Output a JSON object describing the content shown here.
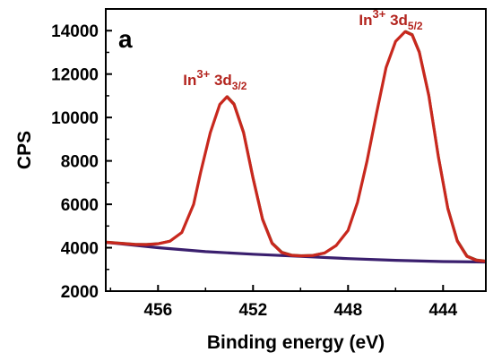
{
  "chart_data": {
    "type": "line",
    "panel_label": "a",
    "xlabel": "Binding energy (eV)",
    "ylabel": "CPS",
    "xlim": [
      458.2,
      442.2
    ],
    "ylim": [
      2000,
      15000
    ],
    "x_reversed": true,
    "x_ticks": [
      456,
      452,
      448,
      444
    ],
    "y_ticks": [
      2000,
      4000,
      6000,
      8000,
      10000,
      12000,
      14000
    ],
    "grid": false,
    "colors": {
      "fit": "#c8281e",
      "raw": "#7a4a20",
      "background": "#3a1f6e",
      "annotation": "#b3241e"
    },
    "annotations": [
      {
        "base": "In",
        "sup": "3+",
        "mid": " 3d",
        "sub": "3/2",
        "x": 453.6,
        "y": 11500
      },
      {
        "base": "In",
        "sup": "3+",
        "mid": " 3d",
        "sub": "5/2",
        "x": 446.2,
        "y": 14250
      }
    ],
    "series": [
      {
        "role": "background",
        "x": [
          458.2,
          456,
          454,
          452,
          450,
          448,
          446,
          444,
          442.2
        ],
        "y": [
          4250,
          4000,
          3820,
          3700,
          3600,
          3500,
          3420,
          3360,
          3340
        ]
      },
      {
        "role": "fit",
        "x": [
          458.2,
          457.5,
          457,
          456.5,
          456,
          455.5,
          455,
          454.5,
          454.2,
          453.8,
          453.4,
          453.1,
          452.8,
          452.4,
          452,
          451.6,
          451.2,
          450.8,
          450.4,
          450,
          449.5,
          449,
          448.5,
          448,
          447.6,
          447.2,
          446.8,
          446.4,
          446,
          445.6,
          445.3,
          445,
          444.6,
          444.2,
          443.8,
          443.4,
          443,
          442.6,
          442.2
        ],
        "y": [
          4250,
          4190,
          4150,
          4140,
          4180,
          4300,
          4700,
          6000,
          7500,
          9300,
          10600,
          10950,
          10600,
          9300,
          7200,
          5300,
          4200,
          3780,
          3650,
          3620,
          3640,
          3750,
          4100,
          4800,
          6100,
          8000,
          10200,
          12300,
          13500,
          13950,
          13800,
          13000,
          11000,
          8200,
          5800,
          4300,
          3600,
          3420,
          3370
        ]
      }
    ]
  }
}
